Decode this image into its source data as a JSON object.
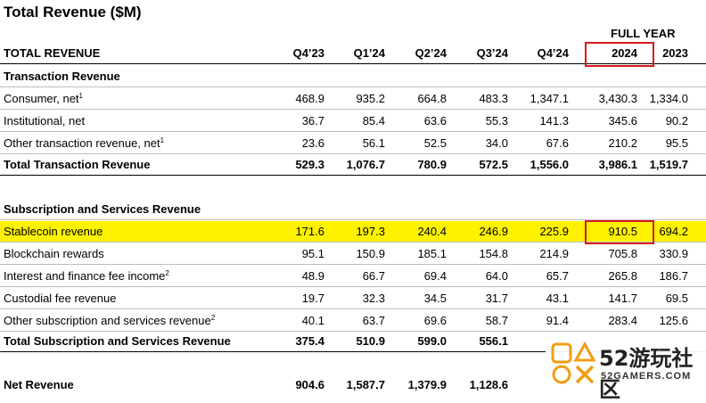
{
  "title": "Total Revenue ($M)",
  "full_year_label": "FULL YEAR",
  "header": {
    "label": "TOTAL REVENUE",
    "cols": [
      "Q4’23",
      "Q1’24",
      "Q2’24",
      "Q3’24",
      "Q4’24",
      "2024",
      "2023"
    ]
  },
  "sections": {
    "transaction": {
      "heading": "Transaction Revenue",
      "rows": [
        {
          "label": "Consumer, net",
          "sup": "1",
          "values": [
            "468.9",
            "935.2",
            "664.8",
            "483.3",
            "1,347.1",
            "3,430.3",
            "1,334.0"
          ]
        },
        {
          "label": "Institutional, net",
          "sup": "",
          "values": [
            "36.7",
            "85.4",
            "63.6",
            "55.3",
            "141.3",
            "345.6",
            "90.2"
          ]
        },
        {
          "label": "Other transaction revenue, net",
          "sup": "1",
          "values": [
            "23.6",
            "56.1",
            "52.5",
            "34.0",
            "67.6",
            "210.2",
            "95.5"
          ]
        }
      ],
      "total": {
        "label": "Total Transaction Revenue",
        "values": [
          "529.3",
          "1,076.7",
          "780.9",
          "572.5",
          "1,556.0",
          "3,986.1",
          "1,519.7"
        ]
      }
    },
    "subscription": {
      "heading": "Subscription and Services Revenue",
      "rows": [
        {
          "label": "Stablecoin revenue",
          "sup": "",
          "values": [
            "171.6",
            "197.3",
            "240.4",
            "246.9",
            "225.9",
            "910.5",
            "694.2"
          ]
        },
        {
          "label": "Blockchain rewards",
          "sup": "",
          "values": [
            "95.1",
            "150.9",
            "185.1",
            "154.8",
            "214.9",
            "705.8",
            "330.9"
          ]
        },
        {
          "label": "Interest and finance fee income",
          "sup": "2",
          "values": [
            "48.9",
            "66.7",
            "69.4",
            "64.0",
            "65.7",
            "265.8",
            "186.7"
          ]
        },
        {
          "label": "Custodial fee revenue",
          "sup": "",
          "values": [
            "19.7",
            "32.3",
            "34.5",
            "31.7",
            "43.1",
            "141.7",
            "69.5"
          ]
        },
        {
          "label": "Other subscription and services revenue",
          "sup": "2",
          "values": [
            "40.1",
            "63.7",
            "69.6",
            "58.7",
            "91.4",
            "283.4",
            "125.6"
          ]
        }
      ],
      "total": {
        "label": "Total Subscription and Services Revenue",
        "values": [
          "375.4",
          "510.9",
          "599.0",
          "556.1",
          "",
          "",
          ""
        ]
      }
    },
    "net": {
      "label": "Net Revenue",
      "values": [
        "904.6",
        "1,587.7",
        "1,379.9",
        "1,128.6",
        "",
        "",
        ""
      ]
    }
  },
  "watermark": {
    "main": "52游玩社区",
    "sub": "52GAMERS.COM"
  },
  "colors": {
    "highlight": "#fff200",
    "callout": "#d71920",
    "logo_orange": "#f39c12"
  }
}
